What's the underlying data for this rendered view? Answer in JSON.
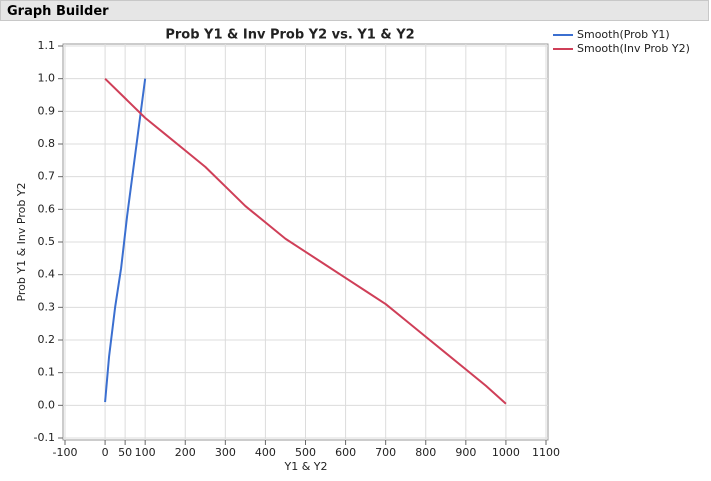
{
  "header": "Graph Builder",
  "chart_data": {
    "type": "line",
    "title": "Prob Y1 & Inv Prob Y2 vs. Y1 & Y2",
    "x_label": "Y1 & Y2",
    "y_label": "Prob Y1 & Inv Prob Y2",
    "xlim": [
      -100,
      1100
    ],
    "xticks": [
      -100,
      0,
      50,
      100,
      200,
      300,
      400,
      500,
      600,
      700,
      800,
      900,
      1000,
      1100
    ],
    "ylim": [
      -0.1,
      1.1
    ],
    "yticks": [
      -0.1,
      {
        "value": 0,
        "label": "0.0"
      },
      0.1,
      0.2,
      0.3,
      0.4,
      0.5,
      0.6,
      0.7,
      0.8,
      0.9,
      {
        "value": 1,
        "label": "1.0"
      },
      1.1
    ],
    "grid": true,
    "legend": "right",
    "series": [
      {
        "name": "Smooth(Prob Y1)",
        "color": "#3b6fd0",
        "x": [
          0,
          10,
          25,
          40,
          55,
          70,
          85,
          100
        ],
        "values": [
          0.01,
          0.15,
          0.3,
          0.42,
          0.58,
          0.72,
          0.86,
          1.0
        ]
      },
      {
        "name": "Smooth(Inv Prob Y2)",
        "color": "#cf3f58",
        "x": [
          0,
          50,
          100,
          150,
          200,
          250,
          300,
          350,
          400,
          450,
          500,
          550,
          600,
          650,
          700,
          750,
          800,
          850,
          900,
          950,
          1000
        ],
        "values": [
          1.0,
          0.94,
          0.88,
          0.83,
          0.78,
          0.73,
          0.67,
          0.61,
          0.56,
          0.51,
          0.47,
          0.43,
          0.39,
          0.35,
          0.31,
          0.26,
          0.21,
          0.16,
          0.11,
          0.06,
          0.005
        ]
      }
    ]
  }
}
